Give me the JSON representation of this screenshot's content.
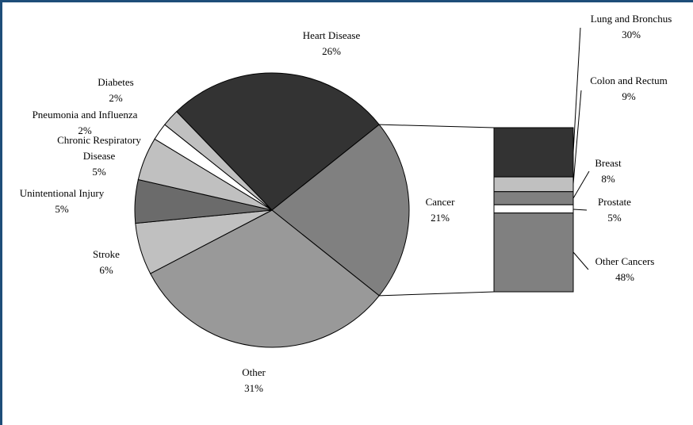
{
  "chart_data": {
    "type": "pie",
    "pie": {
      "slices": [
        {
          "label": "Heart Disease",
          "value": 26,
          "pct_label": "26%",
          "color": "#333333"
        },
        {
          "label": "Cancer",
          "value": 21,
          "pct_label": "21%",
          "color": "#808080"
        },
        {
          "label": "Other",
          "value": 31,
          "pct_label": "31%",
          "color": "#999999"
        },
        {
          "label": "Stroke",
          "value": 6,
          "pct_label": "6%",
          "color": "#c0c0c0"
        },
        {
          "label": "Unintentional Injury",
          "value": 5,
          "pct_label": "5%",
          "color": "#6b6b6b"
        },
        {
          "label": "Chronic Respiratory Disease",
          "label_lines": [
            "Chronic Respiratory",
            "Disease"
          ],
          "value": 5,
          "pct_label": "5%",
          "color": "#c0c0c0"
        },
        {
          "label": "Pneumonia and Influenza",
          "value": 2,
          "pct_label": "2%",
          "color": "#ffffff"
        },
        {
          "label": "Diabetes",
          "value": 2,
          "pct_label": "2%",
          "color": "#c0c0c0"
        }
      ]
    },
    "breakdown": {
      "of": "Cancer",
      "segments": [
        {
          "label": "Lung and Bronchus",
          "value": 30,
          "pct_label": "30%",
          "color": "#333333"
        },
        {
          "label": "Colon and Rectum",
          "value": 9,
          "pct_label": "9%",
          "color": "#c0c0c0"
        },
        {
          "label": "Breast",
          "value": 8,
          "pct_label": "8%",
          "color": "#808080"
        },
        {
          "label": "Prostate",
          "value": 5,
          "pct_label": "5%",
          "color": "#ffffff"
        },
        {
          "label": "Other Cancers",
          "value": 48,
          "pct_label": "48%",
          "color": "#808080"
        }
      ]
    }
  }
}
